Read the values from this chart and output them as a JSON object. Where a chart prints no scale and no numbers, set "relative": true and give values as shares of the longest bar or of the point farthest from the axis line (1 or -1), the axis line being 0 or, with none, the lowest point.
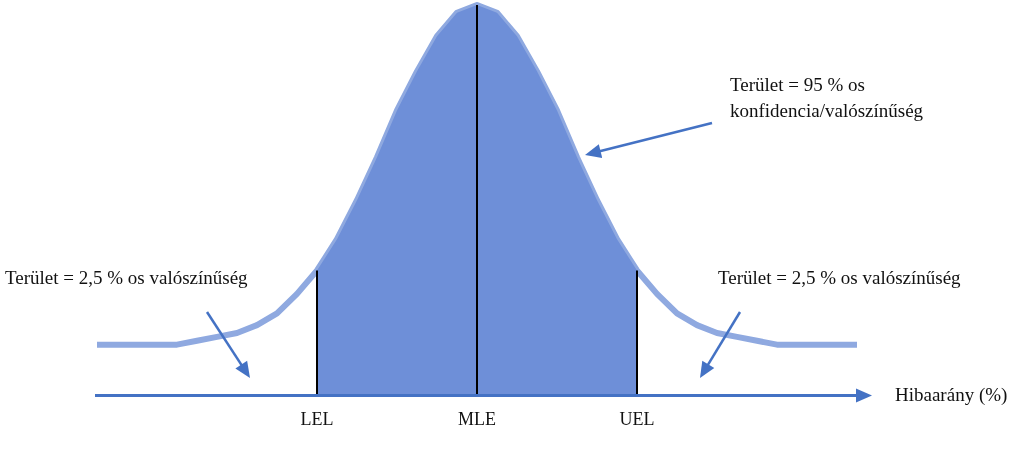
{
  "chart_data": {
    "type": "area",
    "relative": true,
    "xlabel": "Hibaarány (%)",
    "legend": false,
    "grid": false,
    "categories": [
      null,
      null,
      null,
      null,
      null,
      null,
      null,
      null,
      null,
      null,
      null,
      "LEL",
      null,
      null,
      null,
      null,
      null,
      null,
      null,
      "MLE",
      null,
      null,
      null,
      null,
      null,
      null,
      null,
      "UEL",
      null,
      null,
      null,
      null,
      null,
      null,
      null,
      null,
      null,
      null,
      null
    ],
    "series": [
      {
        "type": "line",
        "color": "#8fa9e0",
        "values": [
          0.13,
          0.13,
          0.13,
          0.13,
          0.13,
          0.14,
          0.15,
          0.16,
          0.18,
          0.21,
          0.26,
          0.32,
          0.4,
          0.5,
          0.61,
          0.73,
          0.83,
          0.92,
          0.98,
          1,
          0.98,
          0.92,
          0.83,
          0.73,
          0.61,
          0.5,
          0.4,
          0.32,
          0.26,
          0.21,
          0.18,
          0.16,
          0.15,
          0.14,
          0.13,
          0.13,
          0.13,
          0.13,
          0.13
        ]
      },
      {
        "type": "area",
        "color": "#6e8fd8",
        "values": [
          null,
          null,
          null,
          null,
          null,
          null,
          null,
          null,
          null,
          null,
          null,
          0.32,
          0.4,
          0.5,
          0.61,
          0.73,
          0.83,
          0.92,
          0.98,
          1,
          0.98,
          0.92,
          0.83,
          0.73,
          0.61,
          0.5,
          0.4,
          0.32,
          null,
          null,
          null,
          null,
          null,
          null,
          null,
          null,
          null,
          null,
          null
        ]
      }
    ],
    "ref_lines": [
      {
        "axis": "x",
        "value": "LEL",
        "color": "#000000"
      },
      {
        "axis": "x",
        "value": "MLE",
        "color": "#000000"
      },
      {
        "axis": "x",
        "value": "UEL",
        "color": "#000000"
      }
    ],
    "annotations": [
      "Terület = 95 % os konfidencia/valószínűség",
      "Terület = 2,5 % os valószínűség",
      "Terület = 2,5 % os valószínűség"
    ]
  }
}
